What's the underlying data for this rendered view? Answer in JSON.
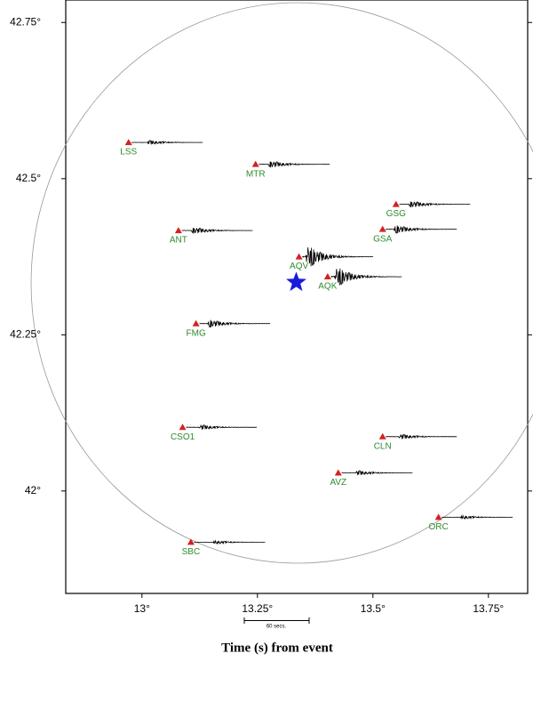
{
  "chart_data": {
    "type": "station-map",
    "xlabel": "Time (s) from event",
    "scale_label": "60 secs.",
    "xlim": [
      12.835,
      13.835
    ],
    "ylim": [
      41.836,
      42.786
    ],
    "xticks": [
      {
        "value": 13,
        "label": "13°"
      },
      {
        "value": 13.25,
        "label": "13.25°"
      },
      {
        "value": 13.5,
        "label": "13.5°"
      },
      {
        "value": 13.75,
        "label": "13.75°"
      }
    ],
    "yticks": [
      {
        "value": 42,
        "label": "42°"
      },
      {
        "value": 42.25,
        "label": "42.25°"
      },
      {
        "value": 42.5,
        "label": "42.5°"
      },
      {
        "value": 42.75,
        "label": "42.75°"
      }
    ],
    "station_color": "#d42020",
    "label_color": "#2e8b2e",
    "epicenter_color": "#1a1adb",
    "epicenter": {
      "lon": 13.334,
      "lat": 42.334
    },
    "stations": [
      {
        "name": "LSS",
        "lon": 12.971,
        "lat": 42.558
      },
      {
        "name": "MTR",
        "lon": 13.246,
        "lat": 42.523
      },
      {
        "name": "GSG",
        "lon": 13.55,
        "lat": 42.459
      },
      {
        "name": "ANT",
        "lon": 13.079,
        "lat": 42.417
      },
      {
        "name": "GSA",
        "lon": 13.521,
        "lat": 42.419
      },
      {
        "name": "AQV",
        "lon": 13.34,
        "lat": 42.375
      },
      {
        "name": "AQK",
        "lon": 13.402,
        "lat": 42.343
      },
      {
        "name": "FMG",
        "lon": 13.117,
        "lat": 42.268
      },
      {
        "name": "CSO1",
        "lon": 13.088,
        "lat": 42.102
      },
      {
        "name": "CLN",
        "lon": 13.521,
        "lat": 42.087
      },
      {
        "name": "AVZ",
        "lon": 13.425,
        "lat": 42.029
      },
      {
        "name": "ORC",
        "lon": 13.642,
        "lat": 41.958
      },
      {
        "name": "SBC",
        "lon": 13.106,
        "lat": 41.918
      }
    ]
  }
}
